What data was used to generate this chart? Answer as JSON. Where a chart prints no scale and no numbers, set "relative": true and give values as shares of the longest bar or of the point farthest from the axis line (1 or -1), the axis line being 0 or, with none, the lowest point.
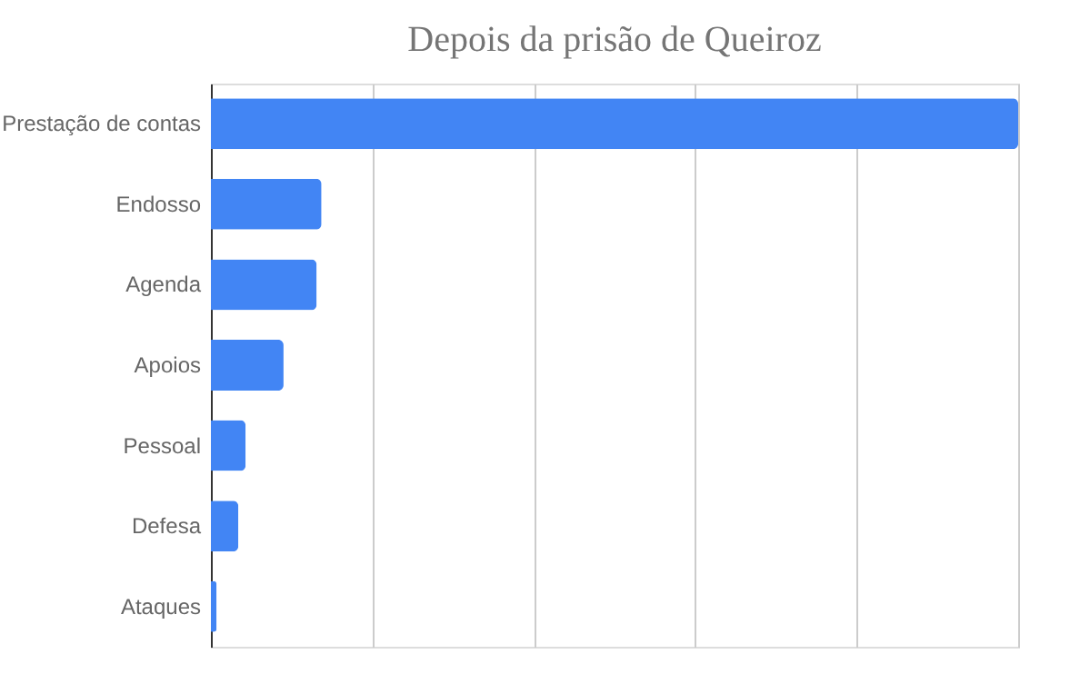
{
  "chart_data": {
    "type": "bar",
    "orientation": "horizontal",
    "relative": true,
    "title": "Depois da prisão de Queiroz",
    "categories": [
      "Prestação de contas",
      "Endosso",
      "Agenda",
      "Apoios",
      "Pessoal",
      "Defesa",
      "Ataques"
    ],
    "values": [
      1,
      0.137,
      0.131,
      0.09,
      0.043,
      0.034,
      0.007
    ],
    "color": "#4285f4",
    "grid": "x"
  }
}
